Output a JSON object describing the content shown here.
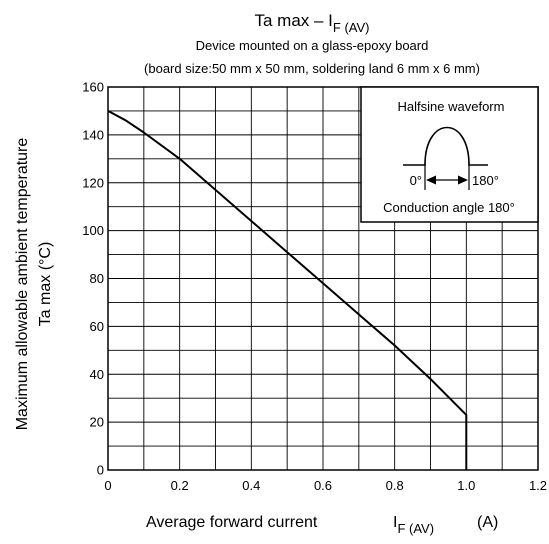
{
  "chart_data": {
    "type": "line",
    "title": "Ta max – I",
    "title_sub": "F (AV)",
    "subtitle_1": "Device mounted on a glass-epoxy board",
    "subtitle_2": "(board size:50 mm x 50 mm, soldering land 6 mm x 6 mm)",
    "xlabel": "Average forward current",
    "xlabel_symbol": "I",
    "xlabel_symbol_sub": "F (AV)",
    "xlabel_unit": "(A)",
    "ylabel_line1": "Maximum allowable ambient temperature",
    "ylabel_line2": "Ta max (°C)",
    "xlim": [
      0,
      1.2
    ],
    "ylim": [
      0,
      160
    ],
    "x_ticks": [
      "0",
      "0.2",
      "0.4",
      "0.6",
      "0.8",
      "1.0",
      "1.2"
    ],
    "y_ticks": [
      "0",
      "20",
      "40",
      "60",
      "80",
      "100",
      "120",
      "140",
      "160"
    ],
    "grid": true,
    "series": [
      {
        "x": [
          0,
          0.05,
          0.1,
          0.2,
          0.3,
          0.4,
          0.5,
          0.6,
          0.7,
          0.8,
          0.9,
          1.0,
          1.0
        ],
        "y": [
          150,
          146,
          141,
          130,
          117,
          104,
          91,
          78,
          65,
          52,
          38,
          23,
          0
        ]
      }
    ],
    "inset": {
      "title": "Halfsine waveform",
      "start_label": "0°",
      "end_label": "180°",
      "caption": "Conduction angle 180°"
    }
  }
}
